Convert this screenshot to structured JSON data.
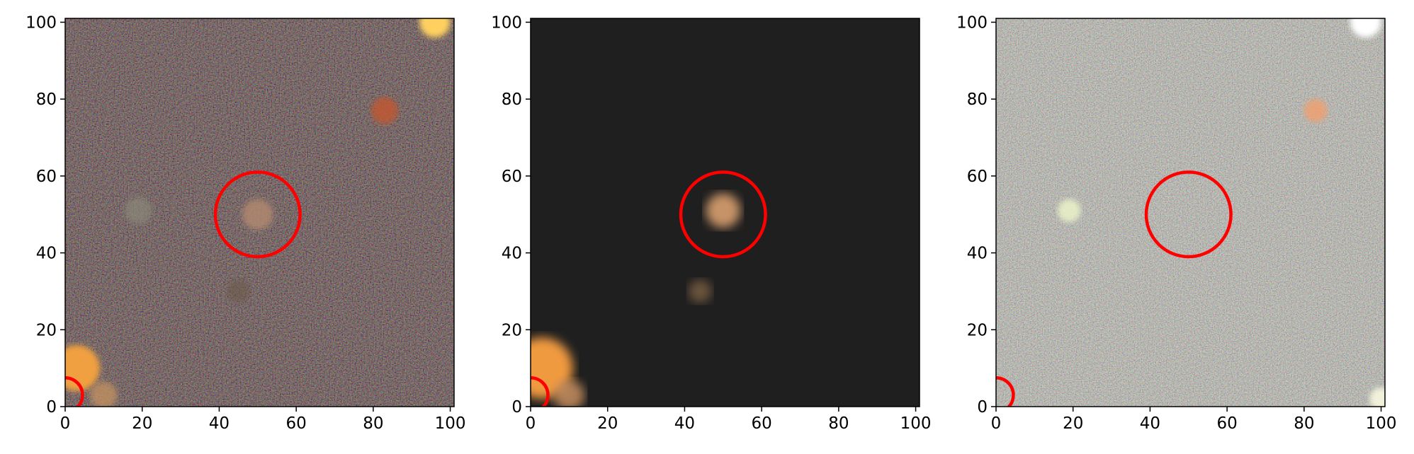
{
  "figure": {
    "panels": [
      {
        "id": "residual-left",
        "style": "noisy-dark",
        "background": "#1b1914",
        "x_ticks": [
          "0",
          "20",
          "40",
          "60",
          "80",
          "100"
        ],
        "y_ticks": [
          "0",
          "20",
          "40",
          "60",
          "80",
          "100"
        ],
        "xlim": [
          0,
          101
        ],
        "ylim": [
          0,
          101
        ],
        "sources": [
          {
            "x": 50,
            "y": 50,
            "r": 4,
            "color": "#b08870",
            "alpha": 0.85
          },
          {
            "x": 19,
            "y": 51,
            "r": 3.5,
            "color": "#8a8878",
            "alpha": 0.7
          },
          {
            "x": 45,
            "y": 30,
            "r": 3,
            "color": "#6a5a48",
            "alpha": 0.6
          },
          {
            "x": 83,
            "y": 77,
            "r": 3.5,
            "color": "#c05830",
            "alpha": 0.85
          },
          {
            "x": 3,
            "y": 10,
            "r": 6,
            "color": "#f0a040",
            "alpha": 1
          },
          {
            "x": 10,
            "y": 3,
            "r": 3.5,
            "color": "#c09060",
            "alpha": 0.8
          },
          {
            "x": 96,
            "y": 100,
            "r": 4,
            "color": "#ffd060",
            "alpha": 1
          }
        ]
      },
      {
        "id": "model-middle",
        "style": "smooth-model",
        "background": "#1f1f1f",
        "x_ticks": [
          "0",
          "20",
          "40",
          "60",
          "80",
          "100"
        ],
        "y_ticks": [
          "0",
          "20",
          "40",
          "60",
          "80",
          "100"
        ],
        "xlim": [
          0,
          101
        ],
        "ylim": [
          0,
          101
        ],
        "sources": [
          {
            "x": 50,
            "y": 51,
            "r": 4.5,
            "color": "#d9a070",
            "alpha": 0.9
          },
          {
            "x": 44,
            "y": 30,
            "r": 3,
            "color": "#8a6a48",
            "alpha": 0.7
          },
          {
            "x": 3,
            "y": 10,
            "r": 8,
            "color": "#f09a40",
            "alpha": 1
          },
          {
            "x": 10,
            "y": 3,
            "r": 4,
            "color": "#c89060",
            "alpha": 0.85
          }
        ]
      },
      {
        "id": "residual-right",
        "style": "noisy-bright",
        "background": "#6f7a6e",
        "x_ticks": [
          "0",
          "20",
          "40",
          "60",
          "80",
          "100"
        ],
        "y_ticks": [
          "0",
          "20",
          "40",
          "60",
          "80",
          "100"
        ],
        "xlim": [
          0,
          101
        ],
        "ylim": [
          0,
          101
        ],
        "sources": [
          {
            "x": 19,
            "y": 51,
            "r": 3,
            "color": "#e8f0c8",
            "alpha": 0.9
          },
          {
            "x": 83,
            "y": 77,
            "r": 3,
            "color": "#f0a070",
            "alpha": 0.85
          },
          {
            "x": 96,
            "y": 100,
            "r": 4,
            "color": "#ffffff",
            "alpha": 1
          },
          {
            "x": 100,
            "y": 2,
            "r": 3,
            "color": "#f8f8e0",
            "alpha": 0.9
          }
        ]
      }
    ],
    "marker_color": "#ff0000",
    "circle": {
      "x": 50,
      "y": 50,
      "r": 11
    },
    "corner_arc": {
      "x": 0,
      "y": 3,
      "r": 4.5
    }
  }
}
